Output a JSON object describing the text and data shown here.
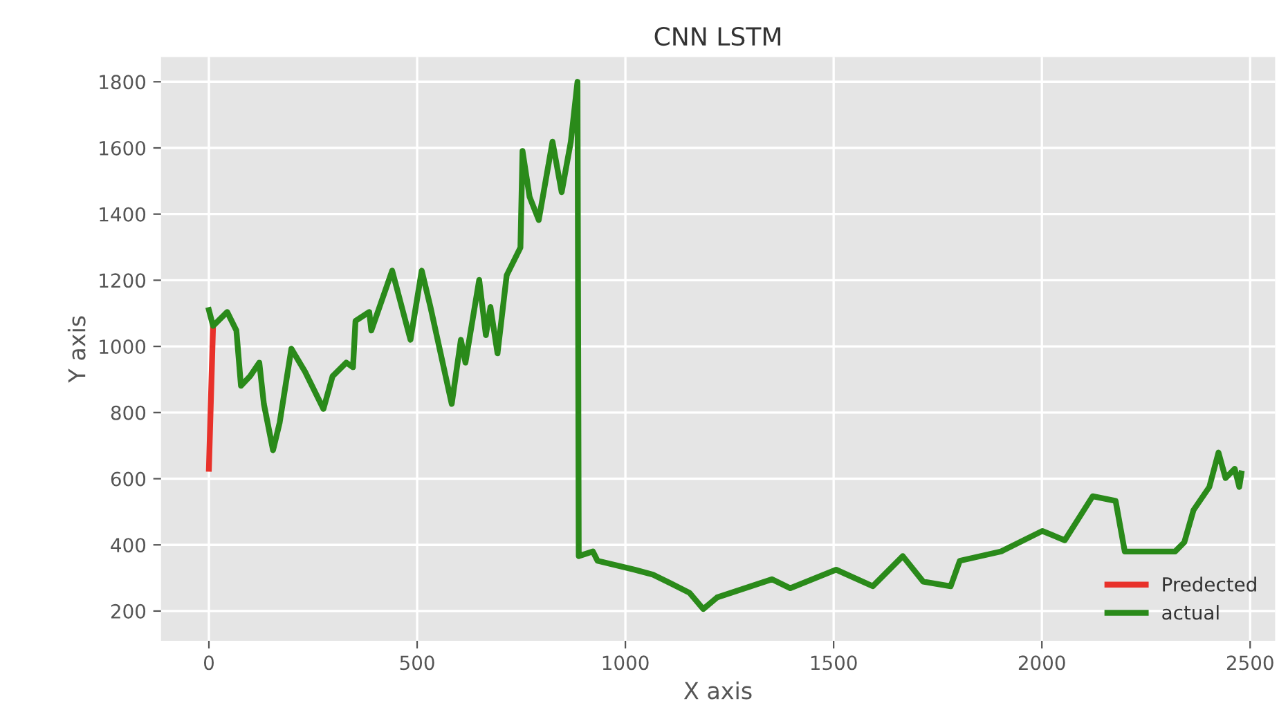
{
  "chart_data": {
    "type": "line",
    "title": "CNN LSTM",
    "xlabel": "X axis",
    "ylabel": "Y axis",
    "x": [
      0,
      10,
      44,
      66,
      77,
      99,
      121,
      132,
      154,
      170,
      198,
      231,
      275,
      297,
      330,
      346,
      352,
      385,
      390,
      440,
      484,
      511,
      532,
      583,
      605,
      616,
      649,
      665,
      676,
      693,
      715,
      748,
      753,
      770,
      792,
      825,
      847,
      869,
      885,
      888,
      922,
      933,
      1022,
      1066,
      1110,
      1154,
      1187,
      1220,
      1352,
      1396,
      1506,
      1594,
      1666,
      1715,
      1781,
      1803,
      1902,
      2001,
      2055,
      2122,
      2177,
      2199,
      2320,
      2342,
      2364,
      2402,
      2424,
      2441,
      2463,
      2474,
      2479
    ],
    "series": [
      {
        "name": "Predected",
        "color": "#e8312a",
        "x": [
          0,
          10
        ],
        "values": [
          630,
          1062
        ]
      },
      {
        "name": "actual",
        "color": "#2a8a1a",
        "values": [
          1110,
          1062,
          1104,
          1048,
          881,
          910,
          951,
          826,
          686,
          770,
          993,
          923,
          811,
          910,
          951,
          937,
          1077,
          1104,
          1048,
          1229,
          1020,
          1229,
          1119,
          826,
          1020,
          951,
          1201,
          1034,
          1119,
          979,
          1215,
          1299,
          1591,
          1452,
          1382,
          1619,
          1466,
          1619,
          1800,
          366,
          380,
          352,
          325,
          310,
          283,
          255,
          206,
          241,
          296,
          269,
          325,
          275,
          366,
          289,
          275,
          352,
          380,
          442,
          414,
          547,
          533,
          380,
          380,
          408,
          505,
          575,
          679,
          602,
          630,
          575,
          616
        ]
      }
    ],
    "xlim": [
      -115,
      2560
    ],
    "xticks": [
      0,
      500,
      1000,
      1500,
      2000,
      2500
    ],
    "ylim": [
      110,
      1875
    ],
    "yticks": [
      200,
      400,
      600,
      800,
      1000,
      1200,
      1400,
      1600,
      1800
    ],
    "grid": true,
    "legend": "lower right",
    "marker": "none",
    "line_style": "solid"
  }
}
